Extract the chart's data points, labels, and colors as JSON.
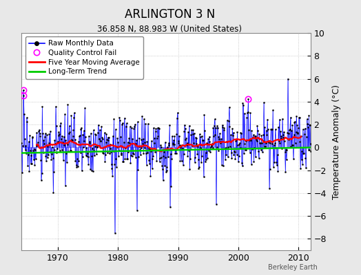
{
  "title": "ARLINGTON 3 N",
  "subtitle": "36.858 N, 88.983 W (United States)",
  "ylabel": "Temperature Anomaly (°C)",
  "credit": "Berkeley Earth",
  "ylim": [
    -9,
    10
  ],
  "yticks": [
    -8,
    -6,
    -4,
    -2,
    0,
    2,
    4,
    6,
    8,
    10
  ],
  "year_start": 1964,
  "year_end": 2013,
  "xticks": [
    1970,
    1980,
    1990,
    2000,
    2010
  ],
  "raw_color": "#0000ff",
  "moving_avg_color": "#ff0000",
  "trend_color": "#00cc00",
  "qc_fail_color": "#ff00ff",
  "background_color": "#e8e8e8",
  "plot_bg_color": "#ffffff",
  "seed": 17
}
